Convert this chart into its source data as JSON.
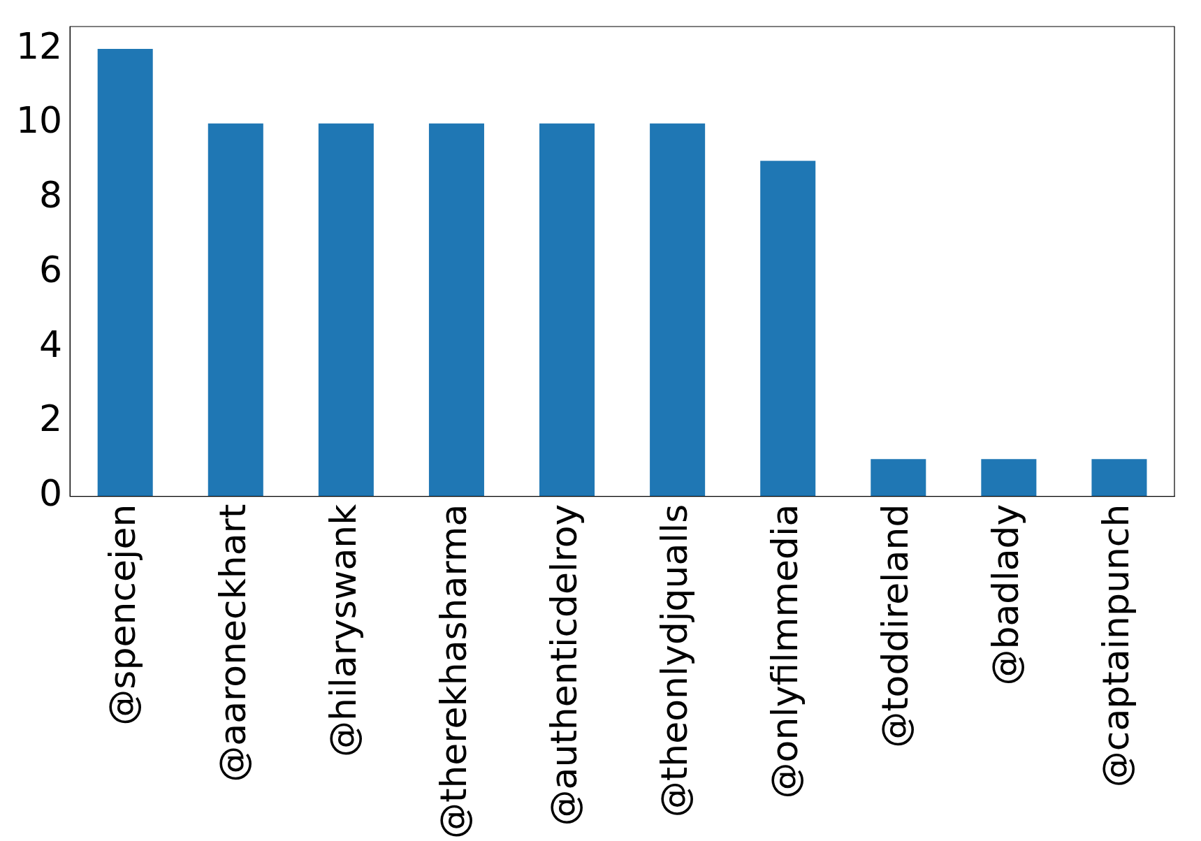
{
  "chart_data": {
    "type": "bar",
    "categories": [
      "@spencejen",
      "@aaroneckhart",
      "@hilaryswank",
      "@therekhasharma",
      "@authenticdelroy",
      "@theonlydjqualls",
      "@onlyfilmmedia",
      "@toddireland",
      "@badlady",
      "@captainpunch"
    ],
    "values": [
      12,
      10,
      10,
      10,
      10,
      10,
      9,
      1,
      1,
      1
    ],
    "color": "#1f77b4",
    "ylim": [
      0,
      12.6
    ],
    "yticks": [
      0,
      2,
      4,
      6,
      8,
      10,
      12
    ],
    "grid": false,
    "legend": false
  }
}
